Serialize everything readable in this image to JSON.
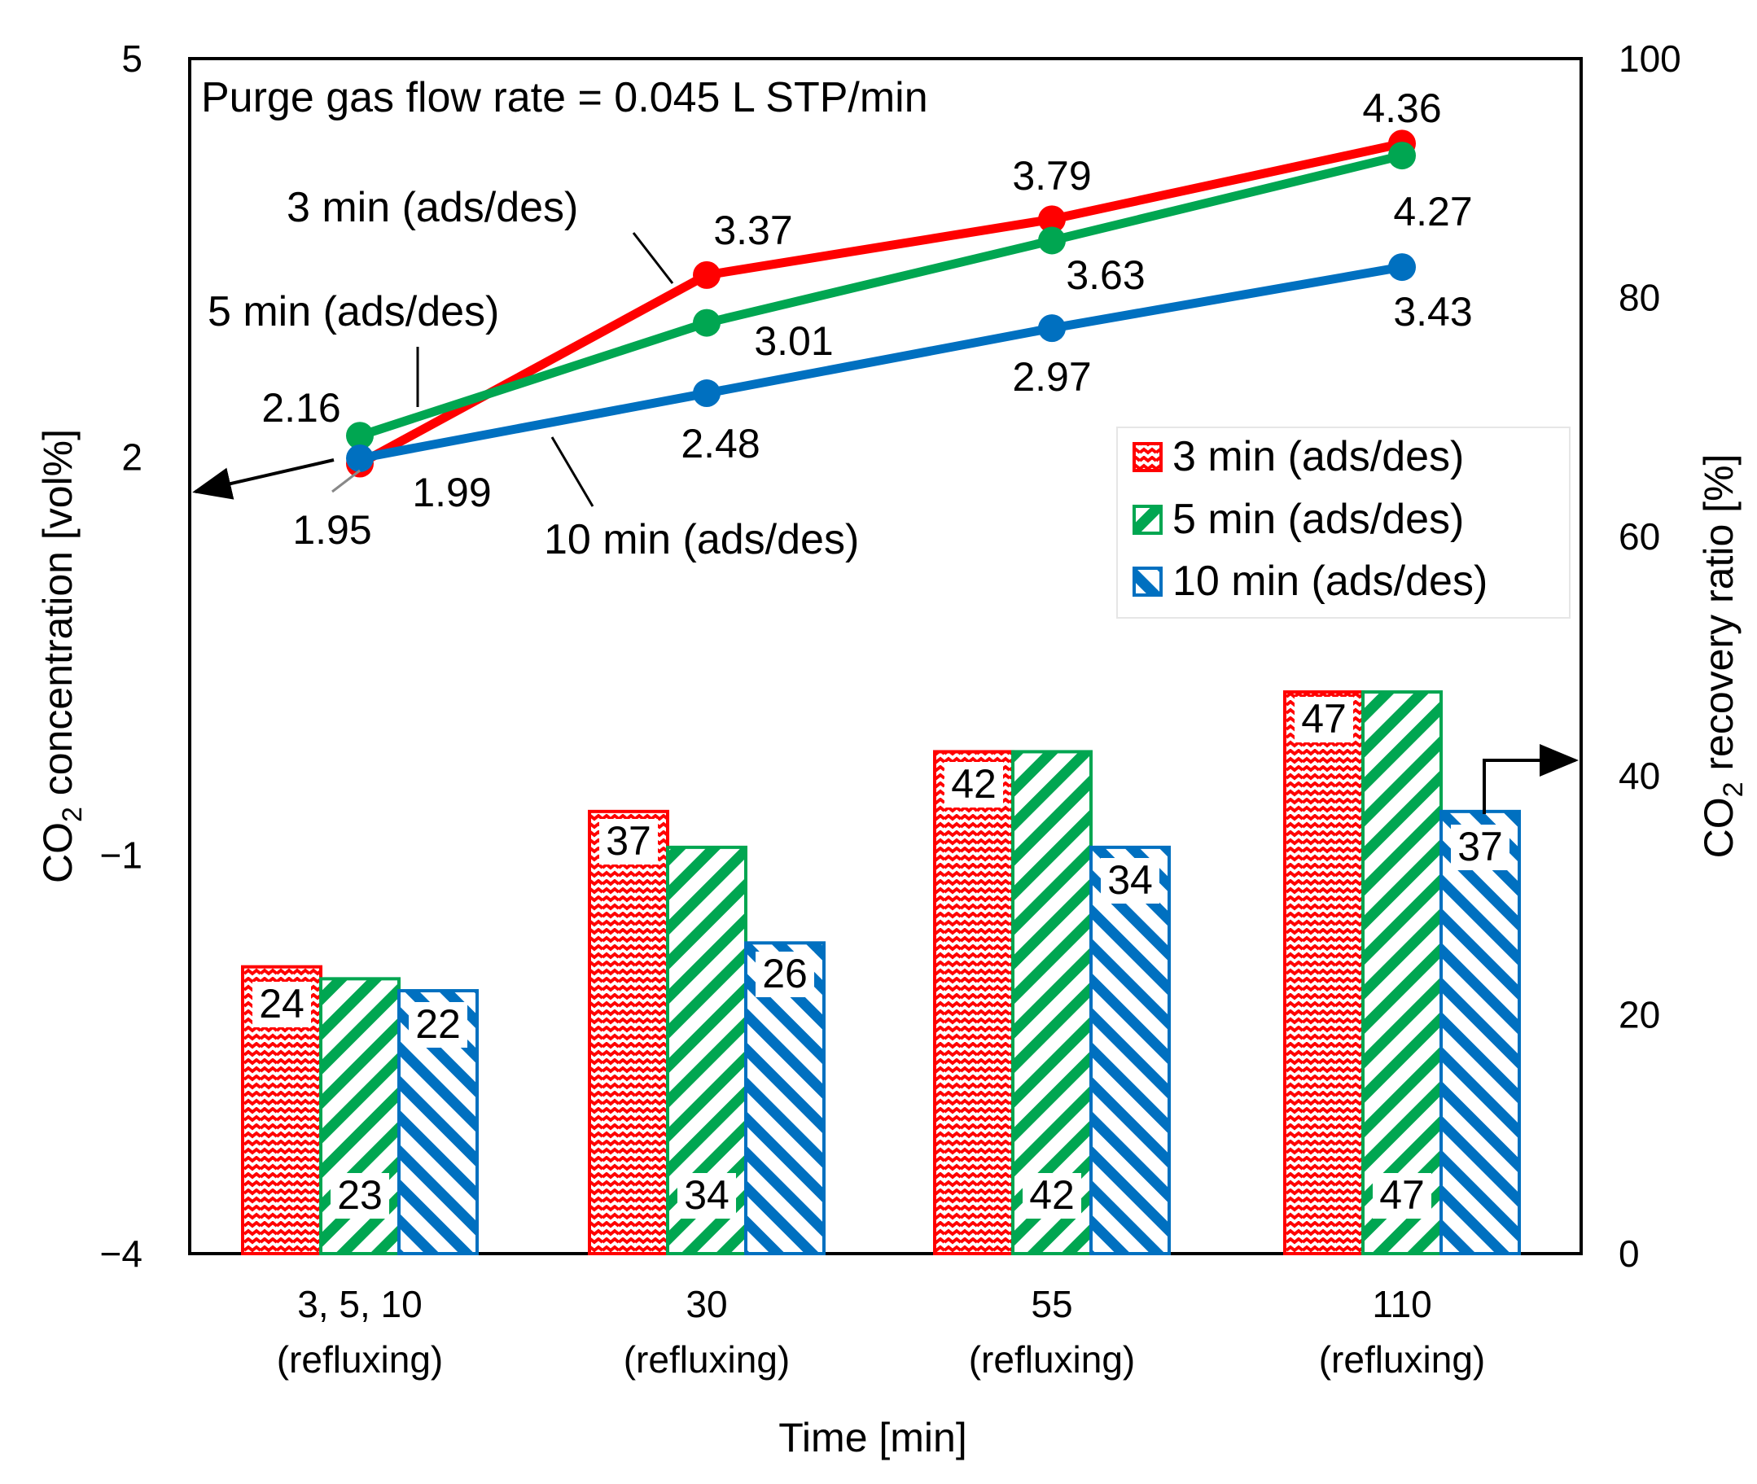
{
  "chart_data": {
    "type": "bar+line",
    "annotation": "Purge gas flow rate = 0.045 L STP/min",
    "x_axis": {
      "title": "Time [min]",
      "categories": [
        {
          "top": "3,  5,  10",
          "bottom": "(refluxing)"
        },
        {
          "top": "30",
          "bottom": "(refluxing)"
        },
        {
          "top": "55",
          "bottom": "(refluxing)"
        },
        {
          "top": "110",
          "bottom": "(refluxing)"
        }
      ]
    },
    "y_left": {
      "title_main": "CO",
      "title_sub": "2",
      "title_rest": " concentration [vol%]",
      "range": [
        -4,
        5
      ],
      "ticks": [
        "−4",
        "−1",
        "2",
        "5"
      ],
      "tick_values": [
        -4,
        -1,
        2,
        5
      ]
    },
    "y_right": {
      "title_main": "CO",
      "title_sub": "2",
      "title_rest": " recovery ratio [%]",
      "range": [
        0,
        100
      ],
      "ticks": [
        "0",
        "20",
        "40",
        "60",
        "80",
        "100"
      ],
      "tick_values": [
        0,
        20,
        40,
        60,
        80,
        100
      ]
    },
    "bar_series": [
      {
        "name": "3 min (ads/des)",
        "color": "#ff0000",
        "values": [
          24,
          37,
          42,
          47
        ],
        "labels": [
          "24",
          "37",
          "42",
          "47"
        ]
      },
      {
        "name": "5 min (ads/des)",
        "color": "#00a651",
        "values": [
          23,
          34,
          42,
          47
        ],
        "labels": [
          "23",
          "34",
          "42",
          "47"
        ]
      },
      {
        "name": "10 min (ads/des)",
        "color": "#0070c0",
        "values": [
          22,
          26,
          34,
          37
        ],
        "labels": [
          "22",
          "26",
          "34",
          "37"
        ]
      }
    ],
    "line_series": [
      {
        "name": "3 min (ads/des)",
        "color": "#ff0000",
        "values": [
          1.95,
          3.37,
          3.79,
          4.36
        ],
        "labels": [
          "1.95",
          "3.37",
          "3.79",
          "4.36"
        ]
      },
      {
        "name": "5 min (ads/des)",
        "color": "#00a651",
        "values": [
          2.16,
          3.01,
          3.63,
          4.27
        ],
        "labels": [
          "2.16",
          "3.01",
          "3.63",
          "4.27"
        ]
      },
      {
        "name": "10 min (ads/des)",
        "color": "#0070c0",
        "values": [
          1.99,
          2.48,
          2.97,
          3.43
        ],
        "labels": [
          "1.99",
          "2.48",
          "2.97",
          "3.43"
        ]
      }
    ],
    "series_callouts": [
      "3 min (ads/des)",
      "5 min (ads/des)",
      "10 min (ads/des)"
    ],
    "legend": {
      "position": "right",
      "entries": [
        "3 min (ads/des)",
        "5 min (ads/des)",
        "10 min (ads/des)"
      ]
    }
  }
}
